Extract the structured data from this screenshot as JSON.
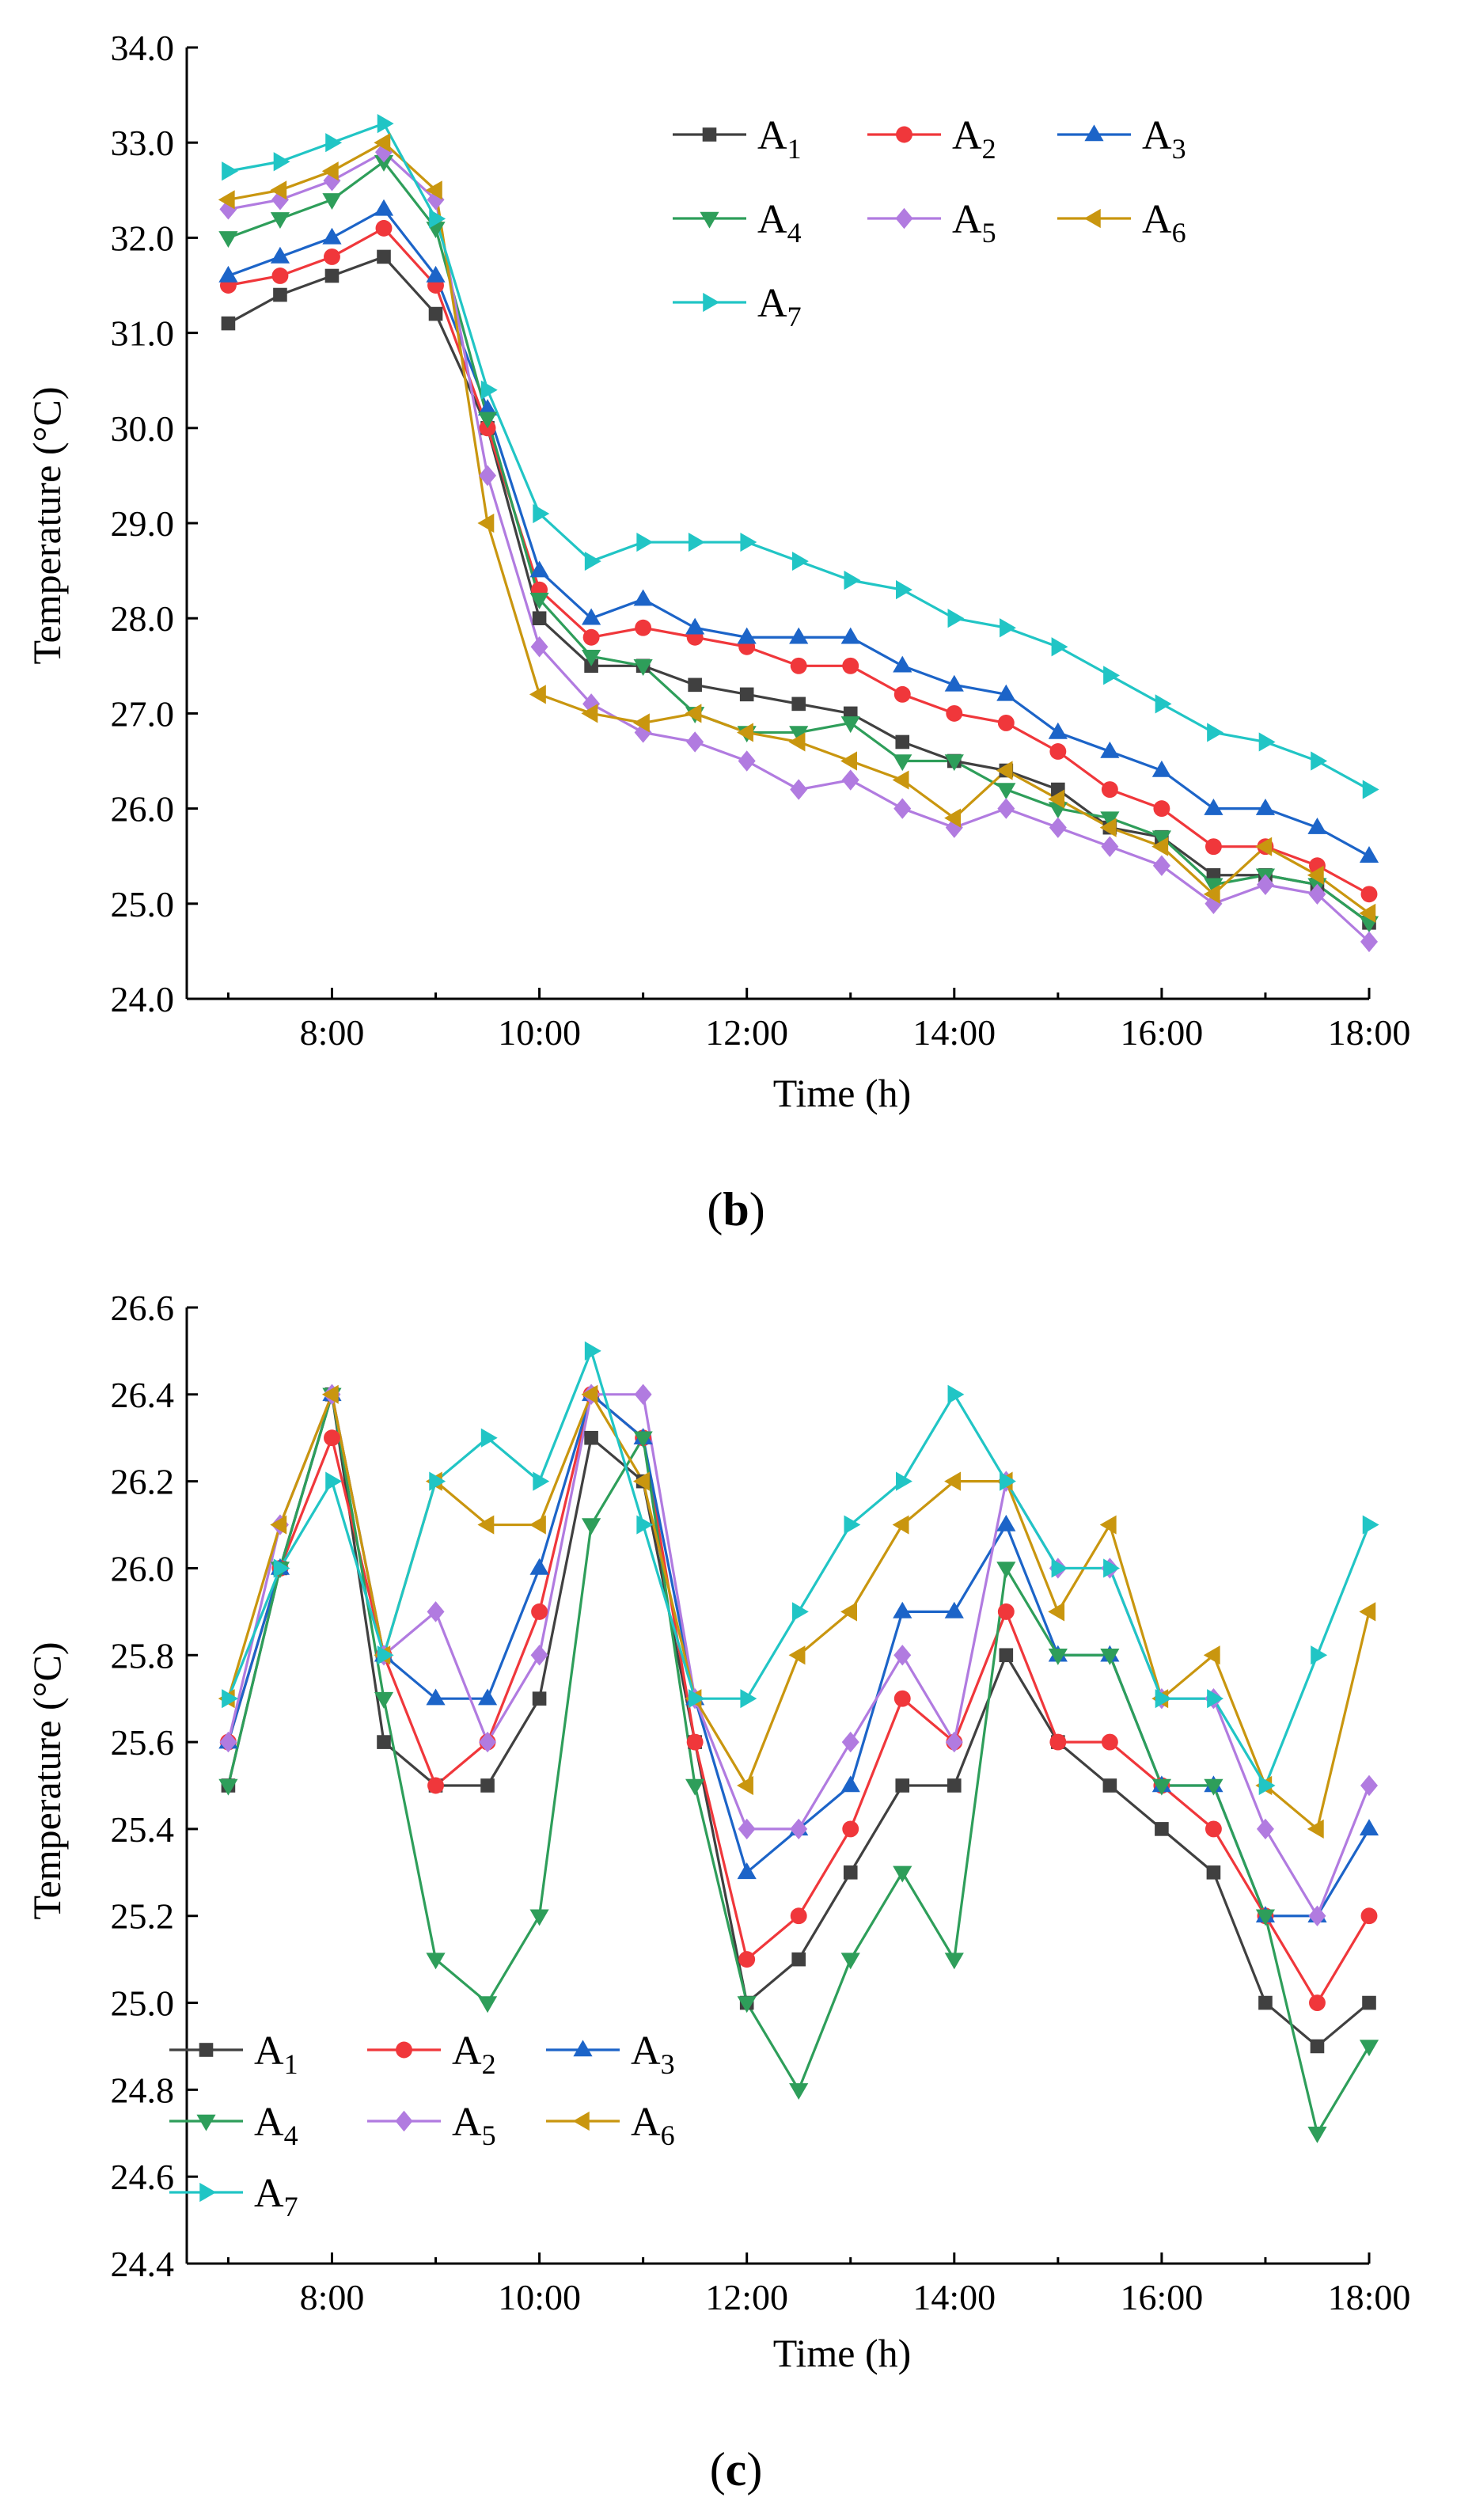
{
  "chart_data": [
    {
      "type": "line",
      "panel_label": "(b)",
      "panel_letter": "b",
      "xlabel": "Time (h)",
      "ylabel": "Temperature (°C)",
      "ylim": [
        24.0,
        34.0
      ],
      "yticks": [
        "24.0",
        "25.0",
        "26.0",
        "27.0",
        "28.0",
        "29.0",
        "30.0",
        "31.0",
        "32.0",
        "33.0",
        "34.0"
      ],
      "xlim": [
        6.6,
        18.0
      ],
      "xticks": [
        {
          "v": 8,
          "label": "8:00"
        },
        {
          "v": 10,
          "label": "10:00"
        },
        {
          "v": 12,
          "label": "12:00"
        },
        {
          "v": 14,
          "label": "14:00"
        },
        {
          "v": 16,
          "label": "16:00"
        },
        {
          "v": 18,
          "label": "18:00"
        }
      ],
      "legend_position": "top-right",
      "x": [
        7,
        7.5,
        8,
        8.5,
        9,
        9.5,
        10,
        10.5,
        11,
        11.5,
        12,
        12.5,
        13,
        13.5,
        14,
        14.5,
        15,
        15.5,
        16,
        16.5,
        17,
        17.5,
        18
      ],
      "series": [
        {
          "name": "A",
          "sub": "1",
          "color": "#404040",
          "marker": "square",
          "values": [
            31.1,
            31.4,
            31.6,
            31.8,
            31.2,
            30.0,
            28.0,
            27.5,
            27.5,
            27.3,
            27.2,
            27.1,
            27.0,
            26.7,
            26.5,
            26.4,
            26.2,
            25.8,
            25.7,
            25.3,
            25.3,
            25.2,
            24.8
          ]
        },
        {
          "name": "A",
          "sub": "2",
          "color": "#f0373b",
          "marker": "circle",
          "values": [
            31.5,
            31.6,
            31.8,
            32.1,
            31.5,
            30.0,
            28.3,
            27.8,
            27.9,
            27.8,
            27.7,
            27.5,
            27.5,
            27.2,
            27.0,
            26.9,
            26.6,
            26.2,
            26.0,
            25.6,
            25.6,
            25.4,
            25.1
          ]
        },
        {
          "name": "A",
          "sub": "3",
          "color": "#1c64c8",
          "marker": "triangle-up",
          "values": [
            31.6,
            31.8,
            32.0,
            32.3,
            31.6,
            30.2,
            28.5,
            28.0,
            28.2,
            27.9,
            27.8,
            27.8,
            27.8,
            27.5,
            27.3,
            27.2,
            26.8,
            26.6,
            26.4,
            26.0,
            26.0,
            25.8,
            25.5
          ]
        },
        {
          "name": "A",
          "sub": "4",
          "color": "#2e9e5a",
          "marker": "triangle-down",
          "values": [
            32.0,
            32.2,
            32.4,
            32.8,
            32.1,
            30.1,
            28.2,
            27.6,
            27.5,
            27.0,
            26.8,
            26.8,
            26.9,
            26.5,
            26.5,
            26.2,
            26.0,
            25.9,
            25.7,
            25.2,
            25.3,
            25.2,
            24.8
          ]
        },
        {
          "name": "A",
          "sub": "5",
          "color": "#b17be0",
          "marker": "diamond",
          "values": [
            32.3,
            32.4,
            32.6,
            32.9,
            32.4,
            29.5,
            27.7,
            27.1,
            26.8,
            26.7,
            26.5,
            26.2,
            26.3,
            26.0,
            25.8,
            26.0,
            25.8,
            25.6,
            25.4,
            25.0,
            25.2,
            25.1,
            24.6
          ]
        },
        {
          "name": "A",
          "sub": "6",
          "color": "#c9960f",
          "marker": "triangle-left",
          "values": [
            32.4,
            32.5,
            32.7,
            33.0,
            32.5,
            29.0,
            27.2,
            27.0,
            26.9,
            27.0,
            26.8,
            26.7,
            26.5,
            26.3,
            25.9,
            26.4,
            26.1,
            25.8,
            25.6,
            25.1,
            25.6,
            25.3,
            24.9
          ]
        },
        {
          "name": "A",
          "sub": "7",
          "color": "#21c5c5",
          "marker": "triangle-right",
          "values": [
            32.7,
            32.8,
            33.0,
            33.2,
            32.2,
            30.4,
            29.1,
            28.6,
            28.8,
            28.8,
            28.8,
            28.6,
            28.4,
            28.3,
            28.0,
            27.9,
            27.7,
            27.4,
            27.1,
            26.8,
            26.7,
            26.5,
            26.2
          ]
        }
      ]
    },
    {
      "type": "line",
      "panel_label": "(c)",
      "panel_letter": "c",
      "xlabel": "Time (h)",
      "ylabel": "Temperature (°C)",
      "ylim": [
        24.4,
        26.6
      ],
      "yticks": [
        "24.4",
        "24.6",
        "24.8",
        "25.0",
        "25.2",
        "25.4",
        "25.6",
        "25.8",
        "26.0",
        "26.2",
        "26.4",
        "26.6"
      ],
      "xlim": [
        6.6,
        18.0
      ],
      "xticks": [
        {
          "v": 8,
          "label": "8:00"
        },
        {
          "v": 10,
          "label": "10:00"
        },
        {
          "v": 12,
          "label": "12:00"
        },
        {
          "v": 14,
          "label": "14:00"
        },
        {
          "v": 16,
          "label": "16:00"
        },
        {
          "v": 18,
          "label": "18:00"
        }
      ],
      "legend_position": "bottom-left",
      "x": [
        7,
        7.5,
        8,
        8.5,
        9,
        9.5,
        10,
        10.5,
        11,
        11.5,
        12,
        12.5,
        13,
        13.5,
        14,
        14.5,
        15,
        15.5,
        16,
        16.5,
        17,
        17.5,
        18
      ],
      "series": [
        {
          "name": "A",
          "sub": "1",
          "color": "#404040",
          "marker": "square",
          "values": [
            25.5,
            26.0,
            26.4,
            25.6,
            25.5,
            25.5,
            25.7,
            26.3,
            26.2,
            25.6,
            25.0,
            25.1,
            25.3,
            25.5,
            25.5,
            25.8,
            25.6,
            25.5,
            25.4,
            25.3,
            25.0,
            24.9,
            25.0
          ]
        },
        {
          "name": "A",
          "sub": "2",
          "color": "#f0373b",
          "marker": "circle",
          "values": [
            25.6,
            26.0,
            26.3,
            25.8,
            25.5,
            25.6,
            25.9,
            26.4,
            26.3,
            25.6,
            25.1,
            25.2,
            25.4,
            25.7,
            25.6,
            25.9,
            25.6,
            25.6,
            25.5,
            25.4,
            25.2,
            25.0,
            25.2
          ]
        },
        {
          "name": "A",
          "sub": "3",
          "color": "#1c64c8",
          "marker": "triangle-up",
          "values": [
            25.6,
            26.0,
            26.4,
            25.8,
            25.7,
            25.7,
            26.0,
            26.4,
            26.3,
            25.7,
            25.3,
            25.4,
            25.5,
            25.9,
            25.9,
            26.1,
            25.8,
            25.8,
            25.5,
            25.5,
            25.2,
            25.2,
            25.4
          ]
        },
        {
          "name": "A",
          "sub": "4",
          "color": "#2e9e5a",
          "marker": "triangle-down",
          "values": [
            25.5,
            26.0,
            26.4,
            25.7,
            25.1,
            25.0,
            25.2,
            26.1,
            26.3,
            25.5,
            25.0,
            24.8,
            25.1,
            25.3,
            25.1,
            26.0,
            25.8,
            25.8,
            25.5,
            25.5,
            25.2,
            24.7,
            24.9
          ]
        },
        {
          "name": "A",
          "sub": "5",
          "color": "#b17be0",
          "marker": "diamond",
          "values": [
            25.6,
            26.1,
            26.4,
            25.8,
            25.9,
            25.6,
            25.8,
            26.4,
            26.4,
            25.7,
            25.4,
            25.4,
            25.6,
            25.8,
            25.6,
            26.2,
            26.0,
            26.0,
            25.7,
            25.7,
            25.4,
            25.2,
            25.5
          ]
        },
        {
          "name": "A",
          "sub": "6",
          "color": "#c9960f",
          "marker": "triangle-left",
          "values": [
            25.7,
            26.1,
            26.4,
            25.8,
            26.2,
            26.1,
            26.1,
            26.4,
            26.2,
            25.7,
            25.5,
            25.8,
            25.9,
            26.1,
            26.2,
            26.2,
            25.9,
            26.1,
            25.7,
            25.8,
            25.5,
            25.4,
            25.9
          ]
        },
        {
          "name": "A",
          "sub": "7",
          "color": "#21c5c5",
          "marker": "triangle-right",
          "values": [
            25.7,
            26.0,
            26.2,
            25.8,
            26.2,
            26.3,
            26.2,
            26.5,
            26.1,
            25.7,
            25.7,
            25.9,
            26.1,
            26.2,
            26.4,
            26.2,
            26.0,
            26.0,
            25.7,
            25.7,
            25.5,
            25.8,
            26.1
          ]
        }
      ]
    }
  ]
}
